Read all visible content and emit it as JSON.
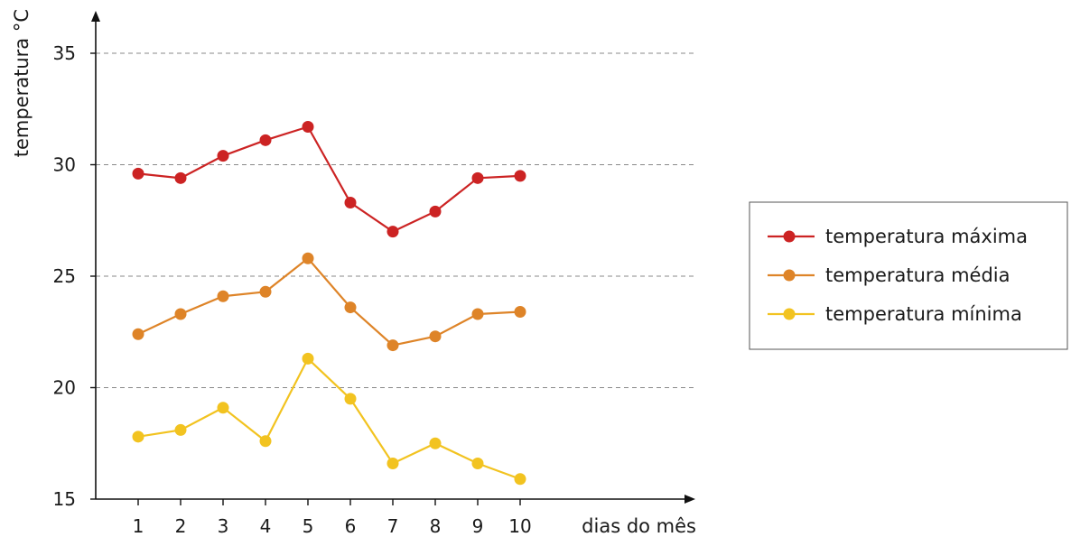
{
  "chart_data": {
    "type": "line",
    "title": "",
    "xlabel": "dias do mês",
    "ylabel": "temperatura °C",
    "x": [
      1,
      2,
      3,
      4,
      5,
      6,
      7,
      8,
      9,
      10
    ],
    "ylim": [
      15,
      37
    ],
    "yticks": [
      15,
      20,
      25,
      30,
      35
    ],
    "grid": true,
    "legend_position": "right",
    "series": [
      {
        "name": "temperatura máxima",
        "color": "#cc2323",
        "values": [
          29.6,
          29.4,
          30.4,
          31.1,
          31.7,
          28.3,
          27.0,
          27.9,
          29.4,
          29.5
        ]
      },
      {
        "name": "temperatura média",
        "color": "#de8428",
        "values": [
          22.4,
          23.3,
          24.1,
          24.3,
          25.8,
          23.6,
          21.9,
          22.3,
          23.3,
          23.4
        ]
      },
      {
        "name": "temperatura mínima",
        "color": "#f2c320",
        "values": [
          17.8,
          18.1,
          19.1,
          17.6,
          21.3,
          19.5,
          16.6,
          17.5,
          16.6,
          15.9
        ]
      }
    ]
  }
}
